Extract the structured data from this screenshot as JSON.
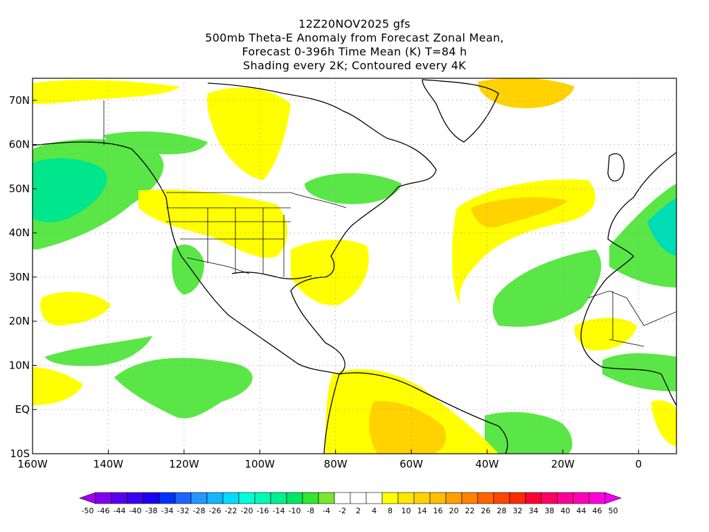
{
  "title": {
    "line1": "12Z20NOV2025 gfs",
    "line2": "500mb Theta-E Anomaly from Forecast Zonal Mean,",
    "line3": "Forecast 0-396h Time Mean (K) T=84 h",
    "line4": "Shading every 2K; Contoured every 4K"
  },
  "map": {
    "projection": "lat-lon",
    "lon_range": [
      -160,
      10
    ],
    "lat_range": [
      -10,
      75
    ],
    "lat_ticks": [
      {
        "lat": 70,
        "label": "70N"
      },
      {
        "lat": 60,
        "label": "60N"
      },
      {
        "lat": 50,
        "label": "50N"
      },
      {
        "lat": 40,
        "label": "40N"
      },
      {
        "lat": 30,
        "label": "30N"
      },
      {
        "lat": 20,
        "label": "20N"
      },
      {
        "lat": 10,
        "label": "10N"
      },
      {
        "lat": 0,
        "label": "EQ"
      },
      {
        "lat": -10,
        "label": "10S"
      }
    ],
    "lon_ticks": [
      {
        "lon": -160,
        "label": "160W"
      },
      {
        "lon": -140,
        "label": "140W"
      },
      {
        "lon": -120,
        "label": "120W"
      },
      {
        "lon": -100,
        "label": "100W"
      },
      {
        "lon": -80,
        "label": "80W"
      },
      {
        "lon": -60,
        "label": "60W"
      },
      {
        "lon": -40,
        "label": "40W"
      },
      {
        "lon": -20,
        "label": "20W"
      },
      {
        "lon": 0,
        "label": "0"
      }
    ],
    "gridlines": "dotted"
  },
  "colorbar": {
    "labels": [
      "-50",
      "-46",
      "-44",
      "-40",
      "-38",
      "-34",
      "-32",
      "-28",
      "-26",
      "-22",
      "-20",
      "-16",
      "-14",
      "-10",
      "-8",
      "-4",
      "-2",
      "2",
      "4",
      "8",
      "10",
      "14",
      "16",
      "20",
      "22",
      "26",
      "28",
      "32",
      "34",
      "38",
      "40",
      "44",
      "46",
      "50"
    ],
    "colors": [
      "#a000f0",
      "#8200f0",
      "#5a00f0",
      "#3c00f0",
      "#1e00f0",
      "#0032ff",
      "#1e64ff",
      "#2896ff",
      "#14b4ff",
      "#00dcff",
      "#00ffdc",
      "#00fab4",
      "#00f08c",
      "#00e664",
      "#32e632",
      "#78e632",
      "#ffffff",
      "#ffffff",
      "#ffffff",
      "#ffff00",
      "#ffe600",
      "#ffd200",
      "#ffbe00",
      "#ffa000",
      "#ff8200",
      "#ff6400",
      "#ff4600",
      "#ff2800",
      "#ff0032",
      "#ff0064",
      "#ff0096",
      "#ff00b4",
      "#ff00dc",
      "#f000f0"
    ]
  }
}
